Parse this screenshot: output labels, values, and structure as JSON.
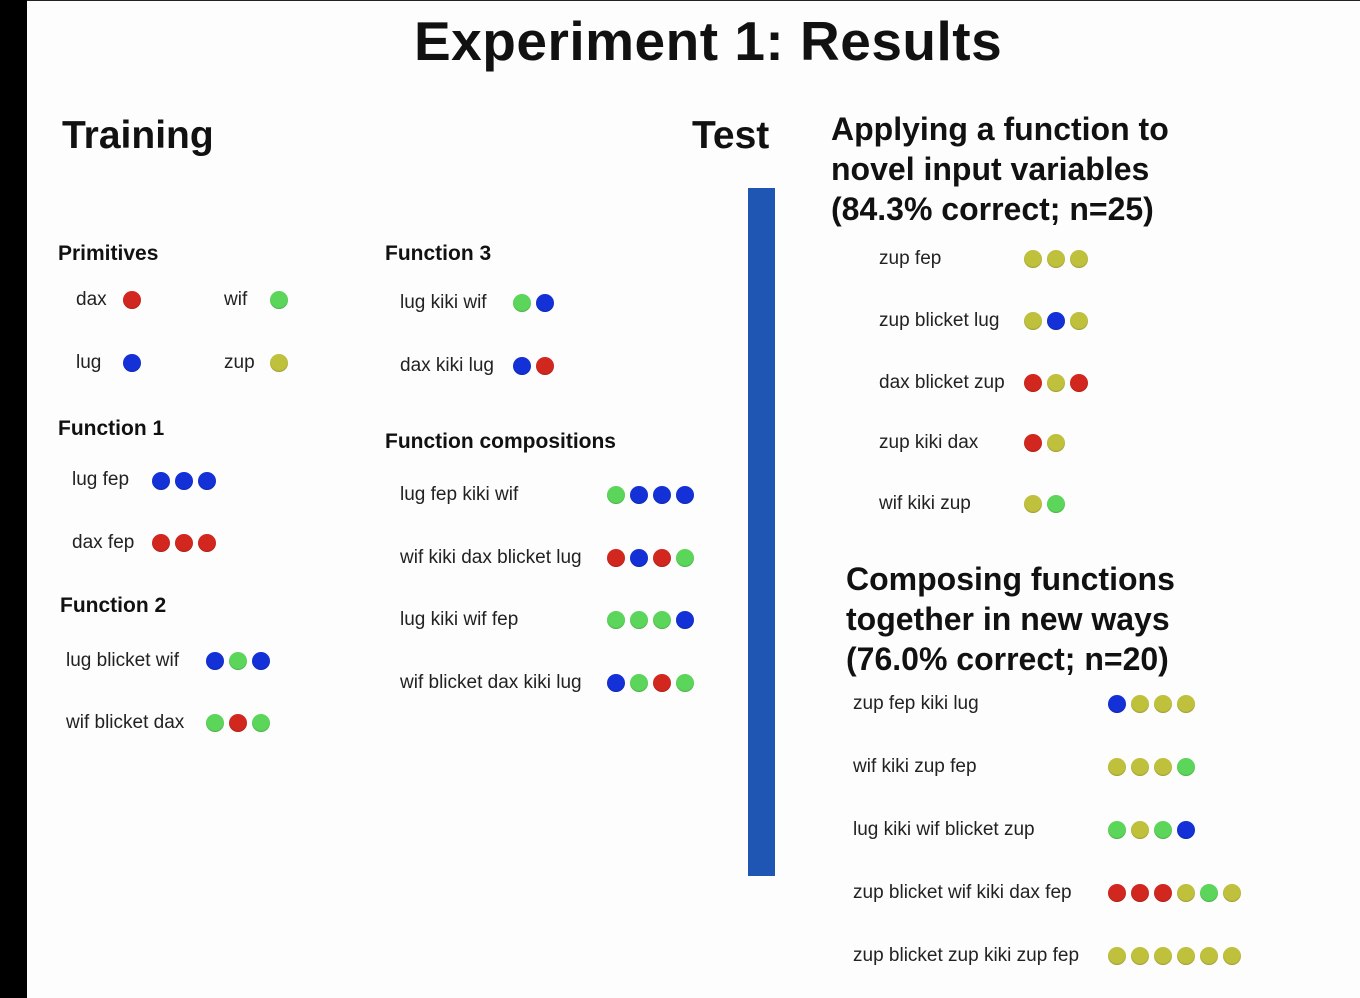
{
  "title": "Experiment 1: Results",
  "headers": {
    "training": "Training",
    "test": "Test"
  },
  "colors": {
    "red": "#d2271f",
    "blue": "#1331d6",
    "green": "#5cd65a",
    "yellow": "#bfc03c",
    "divider": "#1f55b3"
  },
  "primitives": {
    "heading": "Primitives",
    "items": [
      {
        "word": "dax",
        "dots": [
          "red"
        ]
      },
      {
        "word": "wif",
        "dots": [
          "green"
        ]
      },
      {
        "word": "lug",
        "dots": [
          "blue"
        ]
      },
      {
        "word": "zup",
        "dots": [
          "yellow"
        ]
      }
    ]
  },
  "function1": {
    "heading": "Function 1",
    "items": [
      {
        "phrase": "lug fep",
        "dots": [
          "blue",
          "blue",
          "blue"
        ]
      },
      {
        "phrase": "dax fep",
        "dots": [
          "red",
          "red",
          "red"
        ]
      }
    ]
  },
  "function2": {
    "heading": "Function 2",
    "items": [
      {
        "phrase": "lug blicket wif",
        "dots": [
          "blue",
          "green",
          "blue"
        ]
      },
      {
        "phrase": "wif blicket dax",
        "dots": [
          "green",
          "red",
          "green"
        ]
      }
    ]
  },
  "function3": {
    "heading": "Function 3",
    "items": [
      {
        "phrase": "lug kiki wif",
        "dots": [
          "green",
          "blue"
        ]
      },
      {
        "phrase": "dax kiki lug",
        "dots": [
          "blue",
          "red"
        ]
      }
    ]
  },
  "compositions": {
    "heading": "Function compositions",
    "items": [
      {
        "phrase": "lug fep kiki wif",
        "dots": [
          "green",
          "blue",
          "blue",
          "blue"
        ]
      },
      {
        "phrase": "wif kiki dax blicket lug",
        "dots": [
          "red",
          "blue",
          "red",
          "green"
        ]
      },
      {
        "phrase": "lug kiki wif fep",
        "dots": [
          "green",
          "green",
          "green",
          "blue"
        ]
      },
      {
        "phrase": "wif blicket dax kiki lug",
        "dots": [
          "blue",
          "green",
          "red",
          "green"
        ]
      }
    ]
  },
  "test_novel": {
    "heading_lines": [
      "Applying a function to",
      "novel input variables",
      "(84.3% correct; n=25)"
    ],
    "items": [
      {
        "phrase": "zup fep",
        "dots": [
          "yellow",
          "yellow",
          "yellow"
        ]
      },
      {
        "phrase": "zup blicket lug",
        "dots": [
          "yellow",
          "blue",
          "yellow"
        ]
      },
      {
        "phrase": "dax blicket zup",
        "dots": [
          "red",
          "yellow",
          "red"
        ]
      },
      {
        "phrase": "zup kiki dax",
        "dots": [
          "red",
          "yellow"
        ]
      },
      {
        "phrase": "wif kiki zup",
        "dots": [
          "yellow",
          "green"
        ]
      }
    ]
  },
  "test_compose": {
    "heading_lines": [
      "Composing functions",
      "together in new ways",
      "(76.0% correct; n=20)"
    ],
    "items": [
      {
        "phrase": "zup fep kiki lug",
        "dots": [
          "blue",
          "yellow",
          "yellow",
          "yellow"
        ]
      },
      {
        "phrase": "wif kiki zup fep",
        "dots": [
          "yellow",
          "yellow",
          "yellow",
          "green"
        ]
      },
      {
        "phrase": "lug kiki wif blicket zup",
        "dots": [
          "green",
          "yellow",
          "green",
          "blue"
        ]
      },
      {
        "phrase": "zup blicket wif kiki dax fep",
        "dots": [
          "red",
          "red",
          "red",
          "yellow",
          "green",
          "yellow"
        ]
      },
      {
        "phrase": "zup blicket zup kiki zup fep",
        "dots": [
          "yellow",
          "yellow",
          "yellow",
          "yellow",
          "yellow",
          "yellow"
        ]
      }
    ]
  }
}
